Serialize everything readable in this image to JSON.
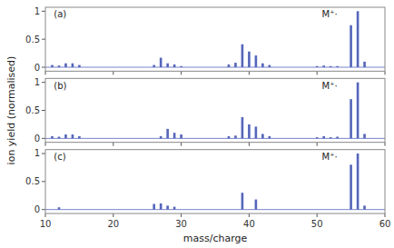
{
  "chart_data": [
    {
      "type": "bar",
      "annotations": [
        "(a)",
        "M⁺·"
      ],
      "color": "#5566bb",
      "x": [
        11,
        12,
        13,
        14,
        15,
        26,
        27,
        28,
        29,
        30,
        37,
        38,
        39,
        40,
        41,
        42,
        43,
        50,
        51,
        52,
        53,
        55,
        56,
        57
      ],
      "values": [
        0.04,
        0.03,
        0.07,
        0.07,
        0.04,
        0.04,
        0.17,
        0.07,
        0.05,
        0.02,
        0.05,
        0.08,
        0.41,
        0.28,
        0.21,
        0.07,
        0.04,
        0.02,
        0.03,
        0.02,
        0.02,
        0.75,
        1.0,
        0.1
      ],
      "xlim": [
        10,
        60
      ],
      "xticks": [
        10,
        20,
        30,
        40,
        50,
        60
      ],
      "ylim": [
        -0.07,
        1.07
      ],
      "yticks": [
        0,
        0.5,
        1
      ],
      "tick_labels": "y",
      "grid": false
    },
    {
      "type": "bar",
      "annotations": [
        "(b)",
        "M⁺·"
      ],
      "color": "#5566bb",
      "y_label": "ion yield (normalised)",
      "x": [
        11,
        12,
        13,
        14,
        15,
        27,
        28,
        29,
        30,
        37,
        38,
        39,
        40,
        41,
        42,
        43,
        50,
        51,
        52,
        53,
        55,
        56,
        57
      ],
      "values": [
        0.04,
        0.03,
        0.07,
        0.07,
        0.04,
        0.04,
        0.17,
        0.1,
        0.07,
        0.04,
        0.05,
        0.38,
        0.25,
        0.21,
        0.08,
        0.04,
        0.02,
        0.04,
        0.02,
        0.03,
        0.7,
        1.0,
        0.08
      ],
      "xlim": [
        10,
        60
      ],
      "xticks": [
        10,
        20,
        30,
        40,
        50,
        60
      ],
      "ylim": [
        -0.07,
        1.07
      ],
      "yticks": [
        0,
        0.5,
        1
      ],
      "tick_labels": "y",
      "grid": false
    },
    {
      "type": "bar",
      "annotations": [
        "(c)",
        "M⁺·"
      ],
      "color": "#5566bb",
      "x_label": "mass/charge",
      "x": [
        12,
        26,
        27,
        28,
        29,
        39,
        41,
        55,
        56,
        57
      ],
      "values": [
        0.04,
        0.1,
        0.11,
        0.07,
        0.05,
        0.3,
        0.18,
        0.8,
        1.0,
        0.07
      ],
      "xlim": [
        10,
        60
      ],
      "xticks": [
        10,
        20,
        30,
        40,
        50,
        60
      ],
      "ylim": [
        -0.07,
        1.07
      ],
      "yticks": [
        0,
        0.5,
        1
      ],
      "grid": false
    }
  ]
}
